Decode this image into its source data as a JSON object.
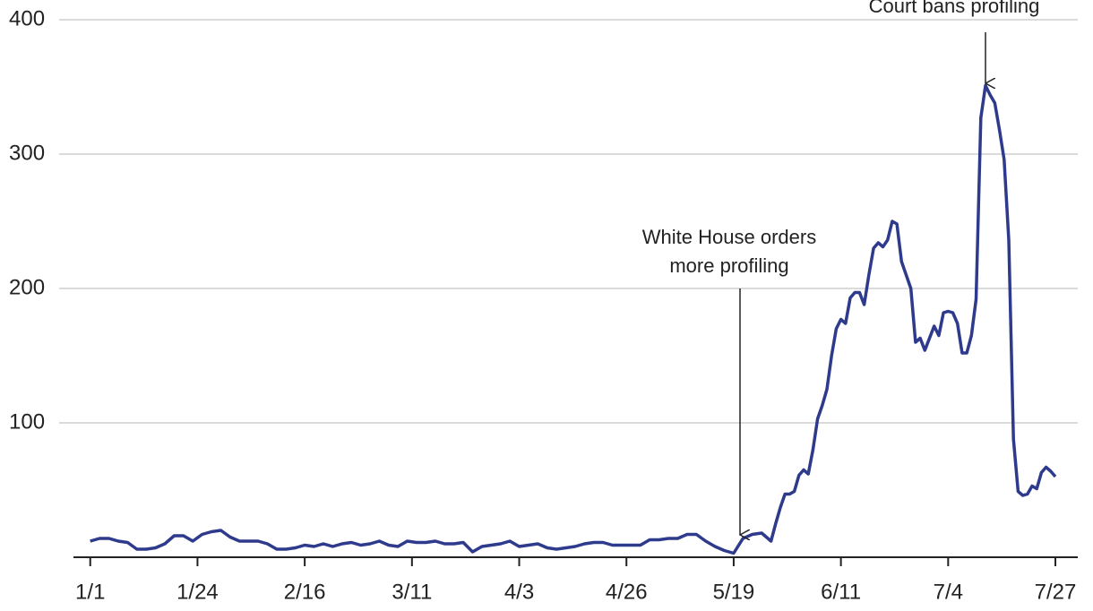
{
  "chart_data": {
    "type": "line",
    "x": [
      0,
      2,
      4,
      6,
      8,
      10,
      12,
      14,
      16,
      18,
      20,
      22,
      24,
      26,
      28,
      30,
      32,
      34,
      36,
      38,
      40,
      42,
      44,
      46,
      48,
      50,
      52,
      54,
      56,
      58,
      60,
      62,
      64,
      66,
      68,
      70,
      72,
      74,
      76,
      78,
      80,
      82,
      84,
      86,
      88,
      90,
      92,
      94,
      96,
      98,
      100,
      102,
      104,
      106,
      108,
      110,
      112,
      114,
      116,
      118,
      120,
      122,
      124,
      126,
      128,
      130,
      132,
      134,
      136,
      138,
      140,
      142,
      144,
      146,
      147,
      148,
      149,
      150,
      151,
      152,
      153,
      154,
      155,
      156,
      157,
      158,
      159,
      160,
      161,
      162,
      163,
      164,
      165,
      166,
      167,
      168,
      169,
      170,
      171,
      172,
      173,
      174,
      175,
      176,
      177,
      178,
      179,
      180,
      181,
      182,
      183,
      184,
      185,
      186,
      187,
      188,
      189,
      190,
      191,
      192,
      193,
      194,
      195,
      196,
      197,
      198,
      199,
      200,
      201,
      202,
      203,
      204,
      205,
      206,
      207
    ],
    "values": [
      12,
      14,
      14,
      12,
      11,
      6,
      6,
      7,
      10,
      16,
      16,
      12,
      17,
      19,
      20,
      15,
      12,
      12,
      12,
      10,
      6,
      6,
      7,
      9,
      8,
      10,
      8,
      10,
      11,
      9,
      10,
      12,
      9,
      8,
      12,
      11,
      11,
      12,
      10,
      10,
      11,
      4,
      8,
      9,
      10,
      12,
      8,
      9,
      10,
      7,
      6,
      7,
      8,
      10,
      11,
      11,
      9,
      9,
      9,
      9,
      13,
      13,
      14,
      14,
      17,
      17,
      12,
      8,
      5,
      3,
      14,
      17,
      18,
      12,
      25,
      37,
      47,
      47,
      49,
      61,
      65,
      62,
      80,
      103,
      113,
      125,
      150,
      170,
      177,
      174,
      193,
      197,
      197,
      188,
      210,
      230,
      234,
      231,
      236,
      250,
      248,
      220,
      210,
      200,
      160,
      163,
      154,
      163,
      172,
      165,
      182,
      183,
      182,
      174,
      152,
      152,
      165,
      192,
      327,
      351,
      344,
      338,
      318,
      296,
      236,
      88,
      49,
      46,
      47,
      53,
      51,
      63,
      67,
      64,
      60
    ],
    "color": "#2e3a8c",
    "xlim": [
      -3.6,
      211.8
    ],
    "xticks": [
      {
        "value": 0,
        "label": "1/1"
      },
      {
        "value": 23,
        "label": "1/24"
      },
      {
        "value": 46,
        "label": "2/16"
      },
      {
        "value": 69,
        "label": "3/11"
      },
      {
        "value": 92,
        "label": "4/3"
      },
      {
        "value": 115,
        "label": "4/26"
      },
      {
        "value": 138,
        "label": "5/19"
      },
      {
        "value": 161,
        "label": "6/11"
      },
      {
        "value": 184,
        "label": "7/4"
      },
      {
        "value": 207,
        "label": "7/27"
      }
    ],
    "ylim": [
      0,
      400
    ],
    "yticks": [
      100,
      200,
      300,
      400
    ],
    "grid": true,
    "annotations": [
      {
        "text": [
          "White House orders",
          "more profiling"
        ]
      },
      {
        "text": [
          "Court bans profiling"
        ]
      }
    ]
  }
}
